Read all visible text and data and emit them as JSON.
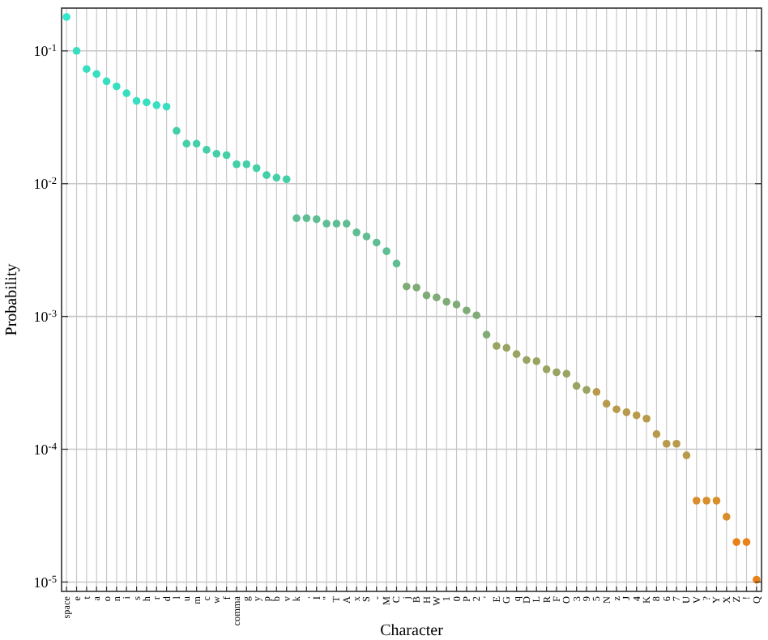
{
  "chart_data": {
    "type": "scatter",
    "xlabel": "Character",
    "ylabel": "Probability",
    "log": "y",
    "grid": true,
    "marker": "circle",
    "categories": [
      "space",
      "e",
      "t",
      "a",
      "o",
      "n",
      "i",
      "s",
      "h",
      "r",
      "d",
      "l",
      "u",
      "m",
      "c",
      "w",
      "f",
      "comma",
      "g",
      "y",
      "p",
      "b",
      "v",
      "k",
      ".",
      "I",
      "\"",
      "T",
      "A",
      "x",
      "S",
      "-",
      "M",
      "C",
      "j",
      "B",
      "H",
      "W",
      "1",
      "0",
      "P",
      "2",
      "'",
      "E",
      "G",
      "q",
      "D",
      "L",
      "R",
      "F",
      "O",
      "3",
      "9",
      "5",
      "N",
      "z",
      "J",
      "4",
      "K",
      "8",
      "6",
      "7",
      "U",
      "V",
      "?",
      "Y",
      "X",
      "Z",
      "!",
      "Q"
    ],
    "ylim": [
      8.5e-06,
      0.21
    ],
    "yticks": [
      {
        "value": 1e-05,
        "label": "10$^{-5}$"
      },
      {
        "value": 0.0001,
        "label": "10$^{-4}$"
      },
      {
        "value": 0.001,
        "label": "10$^{-3}$"
      },
      {
        "value": 0.01,
        "label": "10$^{-2}$"
      },
      {
        "value": 0.1,
        "label": "10$^{-1}$"
      }
    ],
    "series": [
      {
        "values": [
          0.18,
          0.1,
          0.073,
          0.067,
          0.059,
          0.054,
          0.048,
          0.042,
          0.041,
          0.039,
          0.038,
          0.025,
          0.02,
          0.02,
          0.018,
          0.0168,
          0.0164,
          0.014,
          0.014,
          0.0131,
          0.0116,
          0.0111,
          0.0108,
          0.0055,
          0.0055,
          0.0054,
          0.005,
          0.005,
          0.005,
          0.0043,
          0.004,
          0.0036,
          0.0031,
          0.0025,
          0.00168,
          0.00165,
          0.00144,
          0.00139,
          0.00129,
          0.00123,
          0.00111,
          0.00102,
          0.00073,
          0.0006,
          0.00058,
          0.00052,
          0.00047,
          0.00046,
          0.0004,
          0.00038,
          0.00037,
          0.0003,
          0.00028,
          0.00027,
          0.00022,
          0.0002,
          0.00019,
          0.00018,
          0.00017,
          0.00013,
          0.00011,
          0.00011,
          9e-05,
          4.1e-05,
          4.1e-05,
          4.1e-05,
          3.1e-05,
          2e-05,
          2e-05,
          1.04e-05
        ],
        "colors": [
          "#30e8cc",
          "#38dec0",
          "#38dec0",
          "#38dec0",
          "#38dec0",
          "#38dec0",
          "#38dec0",
          "#38dec0",
          "#38dec0",
          "#38dec0",
          "#38dec0",
          "#44cfa8",
          "#44cfa8",
          "#44cfa8",
          "#44cfa8",
          "#44cfa8",
          "#44cfa8",
          "#44cfa8",
          "#44cfa8",
          "#44cfa8",
          "#44cfa8",
          "#44cfa8",
          "#44cfa8",
          "#5ebd92",
          "#5ebd92",
          "#5ebd92",
          "#5ebd92",
          "#5ebd92",
          "#5ebd92",
          "#5ebd92",
          "#5ebd92",
          "#5ebd92",
          "#5ebd92",
          "#5ebd92",
          "#7fac76",
          "#7fac76",
          "#7fac76",
          "#7fac76",
          "#7fac76",
          "#7fac76",
          "#7fac76",
          "#7fac76",
          "#7fac76",
          "#9aa462",
          "#9aa462",
          "#9aa462",
          "#9aa462",
          "#9aa462",
          "#9aa462",
          "#9aa462",
          "#9aa462",
          "#9aa462",
          "#9aa462",
          "#b89a4c",
          "#b89a4c",
          "#b89a4c",
          "#b89a4c",
          "#b89a4c",
          "#b89a4c",
          "#b89a4c",
          "#b89a4c",
          "#b89a4c",
          "#b89a4c",
          "#d88e2c",
          "#d88e2c",
          "#d88e2c",
          "#d88e2c",
          "#e8821a",
          "#e8821a",
          "#e8821a"
        ]
      }
    ]
  }
}
